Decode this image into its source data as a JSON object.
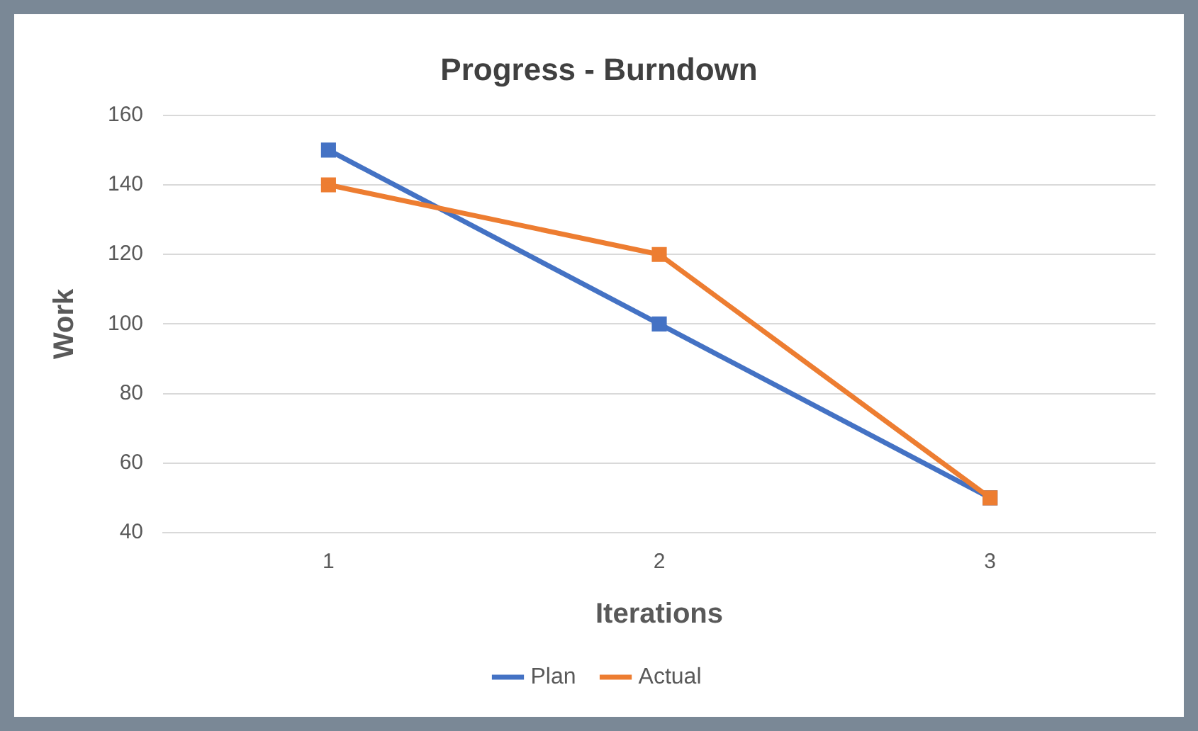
{
  "chart_data": {
    "type": "line",
    "title": "Progress - Burndown",
    "xlabel": "Iterations",
    "ylabel": "Work",
    "categories": [
      "1",
      "2",
      "3"
    ],
    "series": [
      {
        "name": "Plan",
        "color": "#4472c4",
        "values": [
          150,
          100,
          50
        ]
      },
      {
        "name": "Actual",
        "color": "#ed7d31",
        "values": [
          140,
          120,
          50
        ]
      }
    ],
    "ylim": [
      40,
      160
    ],
    "yticks": [
      40,
      60,
      80,
      100,
      120,
      140,
      160
    ],
    "grid": "y",
    "legend": "bottom",
    "marker": "square",
    "line_style": "solid"
  }
}
